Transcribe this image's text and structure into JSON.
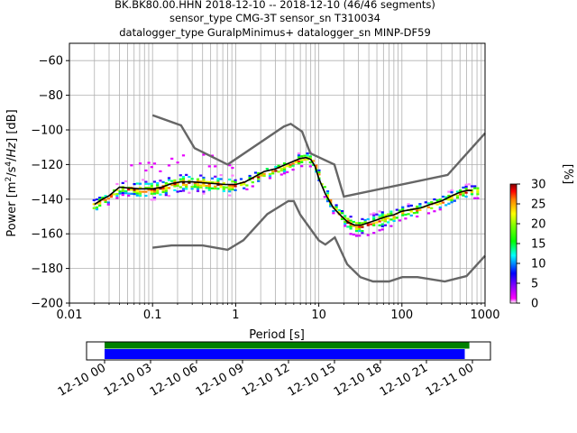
{
  "title_lines": [
    "BK.BK80.00.HHN   2018-12-10 -- 2018-12-10  (46/46 segments)",
    "sensor_type CMG-3T sensor_sn T310034",
    "datalogger_type GuralpMinimus+ datalogger_sn MINP-DF59"
  ],
  "chart_data": {
    "type": "heatmap",
    "xlabel": "Period [s]",
    "ylabel": "Power [m²/s⁴/Hz] [dB]",
    "xscale": "log",
    "xlim": [
      0.01,
      1000
    ],
    "ylim": [
      -200,
      -50
    ],
    "x_ticks": [
      0.01,
      0.1,
      1,
      10,
      100,
      1000
    ],
    "x_tick_labels": [
      "0.01",
      "0.1",
      "1",
      "10",
      "100",
      "1000"
    ],
    "y_ticks": [
      -200,
      -180,
      -160,
      -140,
      -120,
      -100,
      -80,
      -60
    ],
    "y_tick_labels": [
      "−200",
      "−180",
      "−160",
      "−140",
      "−120",
      "−100",
      "−80",
      "−60"
    ],
    "grid": true,
    "mean_curve": {
      "x": [
        0.02,
        0.025,
        0.03,
        0.04,
        0.05,
        0.07,
        0.1,
        0.13,
        0.17,
        0.22,
        0.3,
        0.4,
        0.55,
        0.75,
        1,
        1.3,
        1.7,
        2.2,
        3,
        4,
        5,
        6,
        7,
        8,
        9,
        10,
        12,
        15,
        18,
        22,
        27,
        32,
        40,
        50,
        65,
        80,
        100,
        130,
        170,
        220,
        300,
        400,
        500,
        600,
        700
      ],
      "y": [
        -143,
        -140,
        -138,
        -133,
        -133.5,
        -134,
        -134,
        -133,
        -131,
        -130,
        -130,
        -130.5,
        -131,
        -131.5,
        -131.5,
        -130,
        -127,
        -124,
        -122.5,
        -120,
        -118,
        -116.5,
        -116,
        -117,
        -121,
        -128,
        -137,
        -145,
        -149,
        -153,
        -155,
        -155,
        -153.5,
        -152,
        -150,
        -149,
        -147,
        -146,
        -145,
        -143,
        -141,
        -138,
        -136,
        -135,
        -135
      ]
    },
    "nhnm": {
      "x": [
        0.1,
        0.22,
        0.32,
        0.8,
        3.8,
        4.6,
        6.3,
        7.9,
        15.4,
        20,
        354.8,
        10000
      ],
      "y": [
        -91.5,
        -97.4,
        -110.5,
        -120,
        -98,
        -96.5,
        -101,
        -113.5,
        -120,
        -138.5,
        -126,
        -48.5
      ]
    },
    "nlnm": {
      "x": [
        0.1,
        0.17,
        0.4,
        0.8,
        1.24,
        2.4,
        4.3,
        5,
        6,
        10,
        12,
        15.6,
        21.9,
        31.6,
        45,
        70,
        101,
        154,
        328,
        600,
        10000
      ],
      "y": [
        -168,
        -166.7,
        -166.7,
        -169.2,
        -163.7,
        -148.6,
        -141.1,
        -141.1,
        -149,
        -163.8,
        -166.2,
        -162.1,
        -177.5,
        -185,
        -187.5,
        -187.5,
        -185,
        -185,
        -187.5,
        -184.4,
        -120
      ]
    },
    "colorbar": {
      "label": "[%]",
      "min": 0,
      "max": 30,
      "ticks": [
        0,
        5,
        10,
        15,
        20,
        25,
        30
      ],
      "tick_labels": [
        "0",
        "5",
        "10",
        "15",
        "20",
        "25",
        "30"
      ]
    },
    "timeline": {
      "ticks": [
        "12-10 00",
        "12-10 03",
        "12-10 06",
        "12-10 09",
        "12-10 12",
        "12-10 15",
        "12-10 18",
        "12-10 21",
        "12-11 00"
      ],
      "green_bar": {
        "start_hour": 0,
        "end_hour": 23.8,
        "color": "#008000"
      },
      "blue_bar": {
        "start_hour": 0,
        "end_hour": 23.5,
        "color": "#0000ff"
      }
    }
  }
}
